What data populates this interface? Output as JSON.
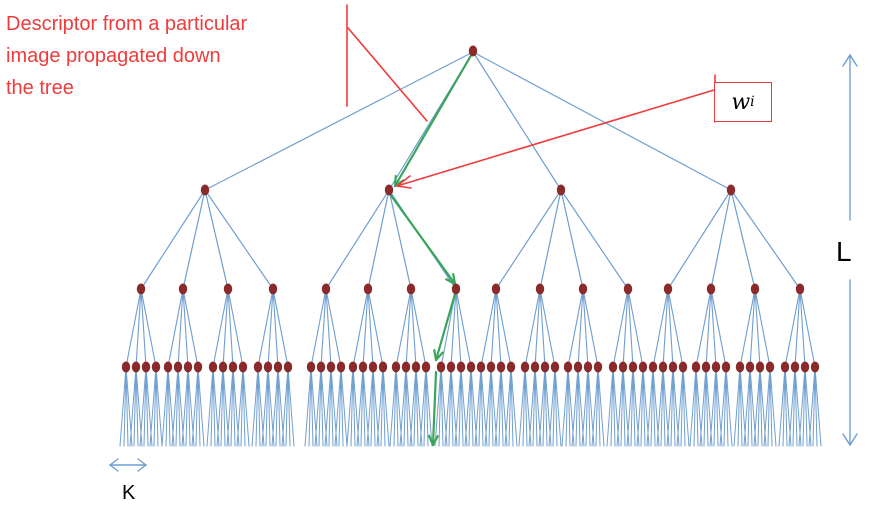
{
  "annotation": {
    "lines": [
      "Descriptor from a particular",
      "image propagated down",
      "the tree"
    ]
  },
  "weight_label": {
    "base": "w",
    "subscript": "i"
  },
  "depth_label": "L",
  "branching_label": "K",
  "tree": {
    "branching_factor": 4,
    "levels": 4,
    "highlighted_path": [
      0,
      1,
      1,
      0
    ]
  },
  "colors": {
    "edge": "#6f9fd0",
    "node": "#8b2a2a",
    "path": "#3aa55a",
    "annotation": "#ee3b3b",
    "dimension_arrow": "#6f9fd0"
  }
}
